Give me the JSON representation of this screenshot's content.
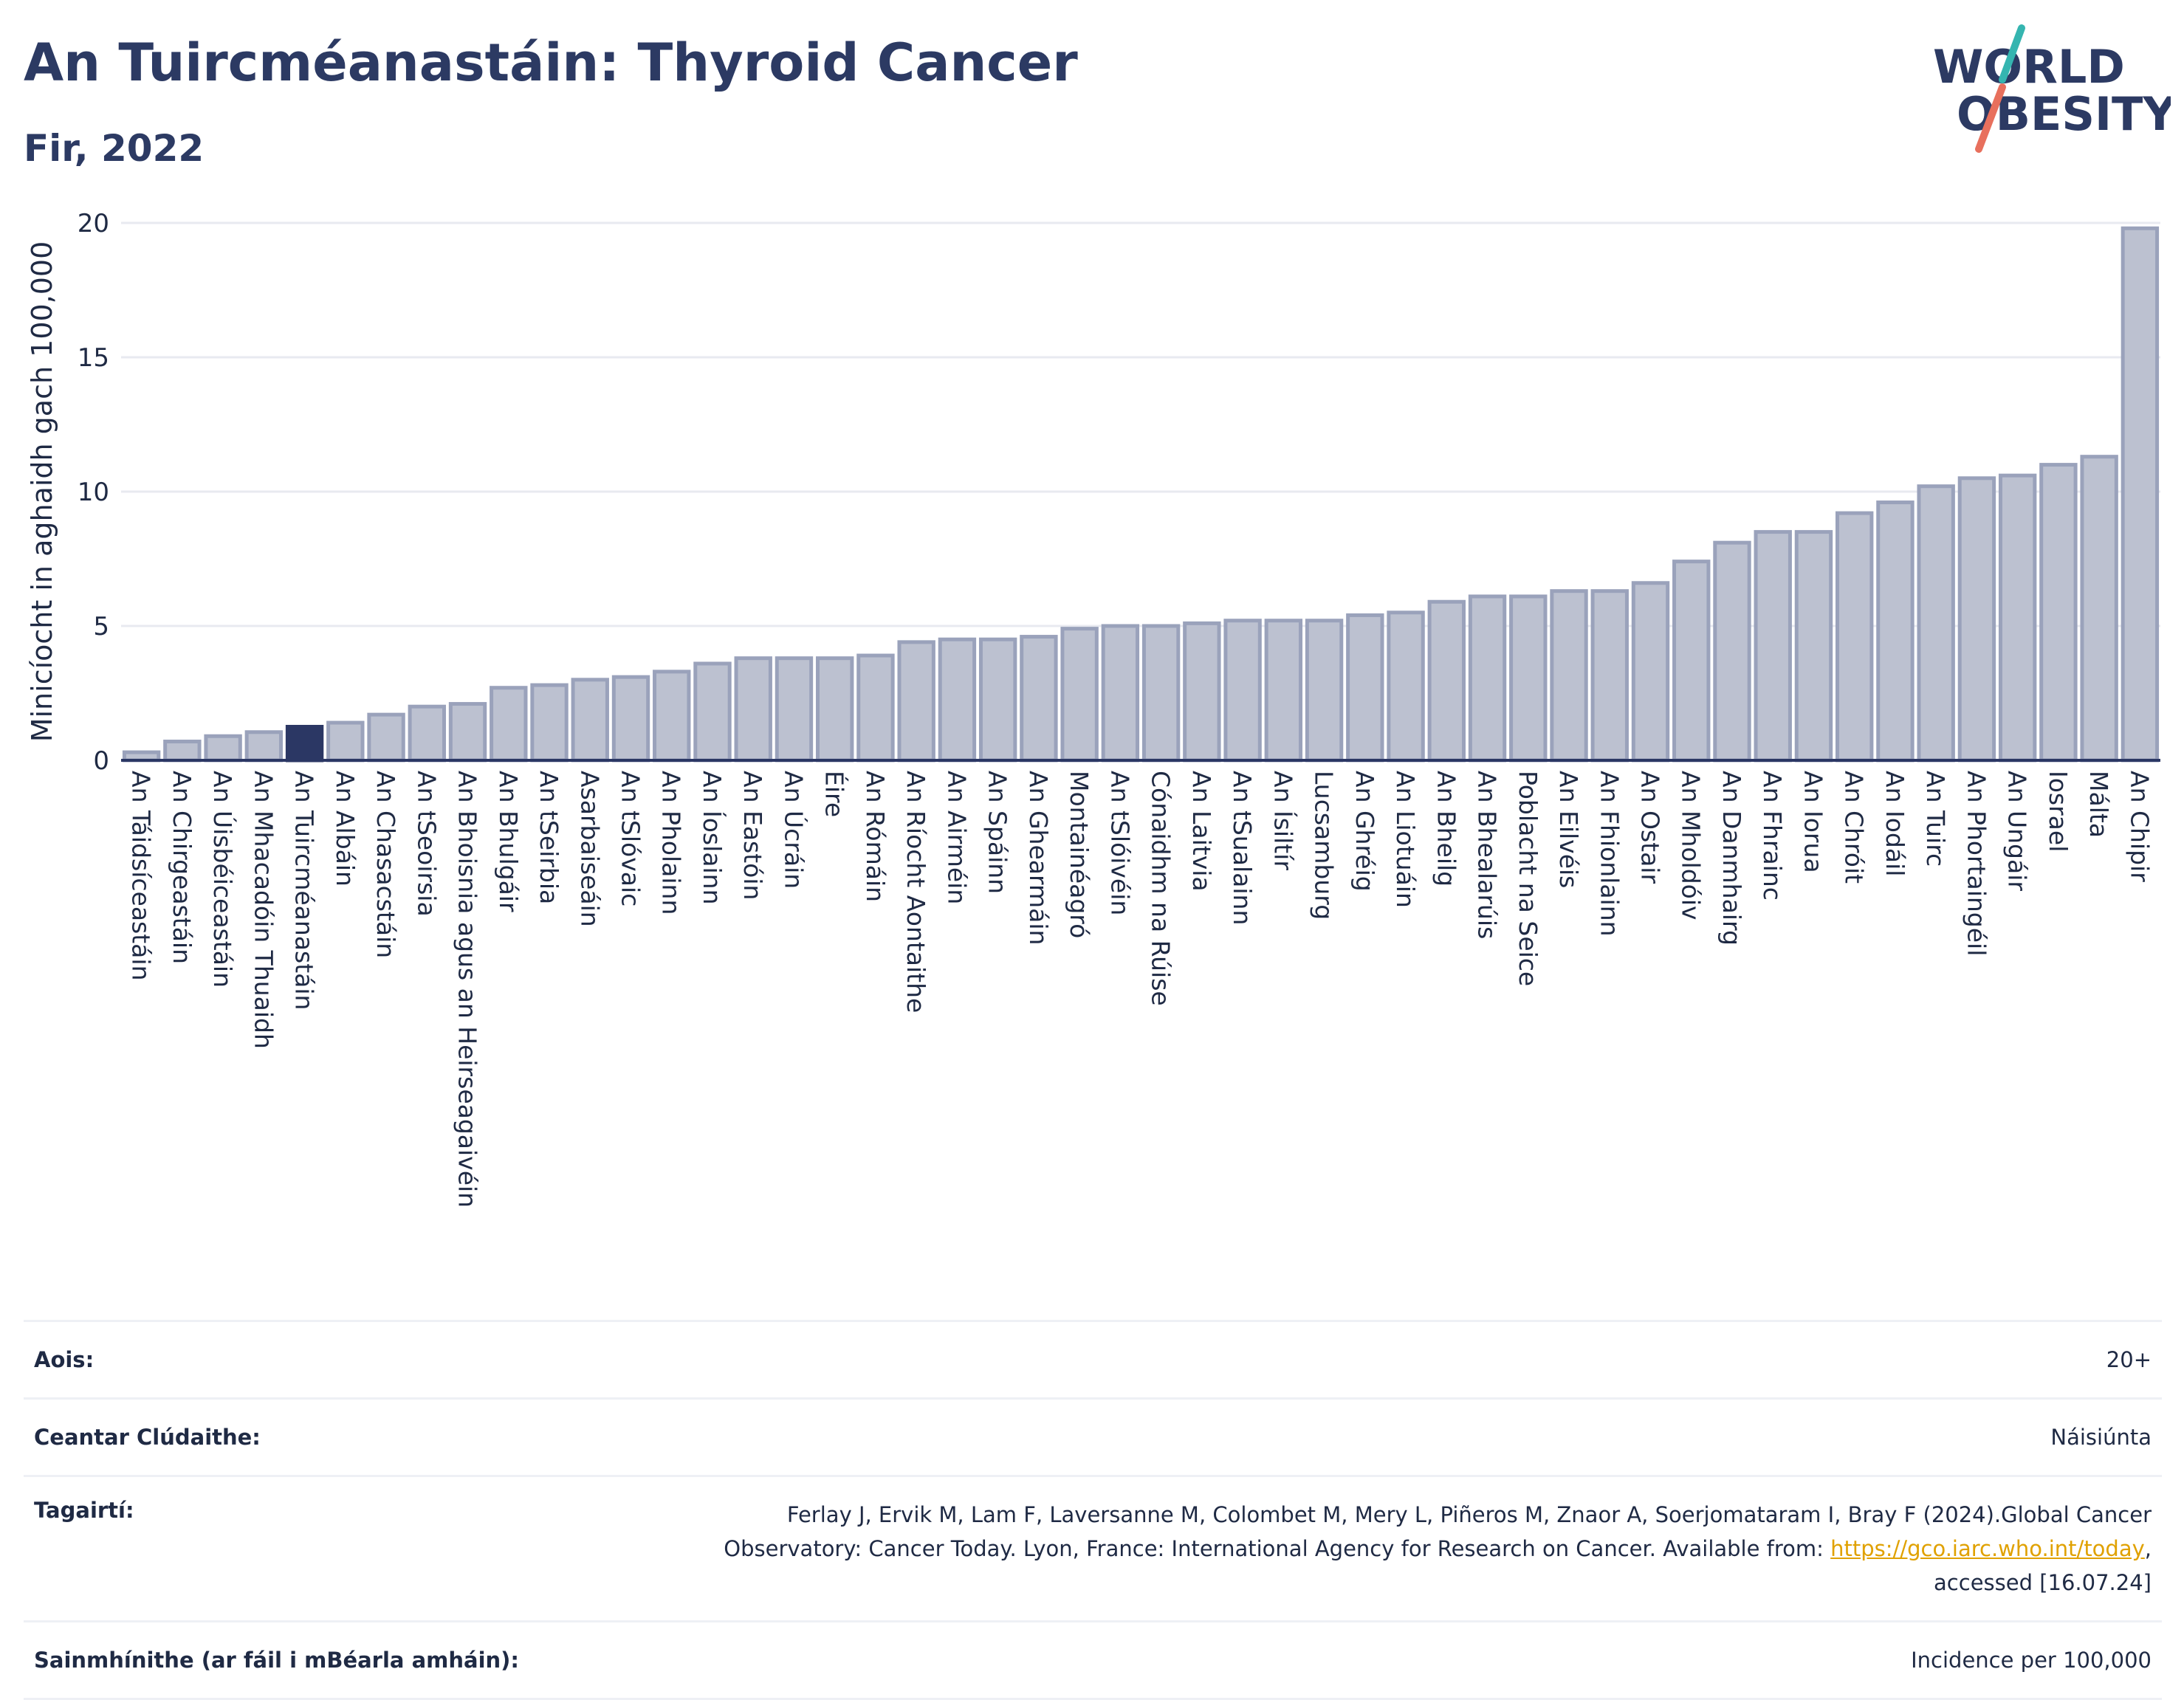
{
  "header": {
    "title": "An Tuircméanastáin: Thyroid Cancer",
    "subtitle": "Fir, 2022",
    "logo_line1": "WORLD",
    "logo_line2": "OBESITY"
  },
  "colors": {
    "bar": "#bcc1d0",
    "bar_border": "#9aa2bb",
    "highlight": "#2b3764",
    "axis": "#2b3764",
    "grid": "#e8eaf0",
    "logo_text": "#2c3a63",
    "logo_teal": "#35b5b0",
    "logo_coral": "#e8705d"
  },
  "chart_data": {
    "type": "bar",
    "title": "An Tuircméanastáin: Thyroid Cancer",
    "subtitle": "Fir, 2022",
    "ylabel": "Minicíocht in aghaidh gach 100,000",
    "xlabel": "",
    "ylim": [
      0,
      20
    ],
    "yticks": [
      0,
      5,
      10,
      15,
      20
    ],
    "grid": true,
    "highlight": "An Tuircméanastáin",
    "categories": [
      "An Táidsíceastáin",
      "An Chirgeastáin",
      "An Úisbéiceastáin",
      "An Mhacadóin Thuaidh",
      "An Tuircméanastáin",
      "An Albáin",
      "An Chasacstáin",
      "An tSeoirsia",
      "An Bhoisnia agus an Heirseagaivéin",
      "An Bhulgáir",
      "An tSeirbia",
      "Asarbaiseáin",
      "An tSlóvaic",
      "An Pholainn",
      "An Íoslainn",
      "An Eastóin",
      "An Úcráin",
      "Éire",
      "An Rómáin",
      "An Ríocht Aontaithe",
      "An Airméin",
      "An Spáinn",
      "An Ghearmáin",
      "Montainéagró",
      "An tSlóivéin",
      "Cónaidhm na Rúise",
      "An Laitvia",
      "An tSualainn",
      "An Ísiltír",
      "Lucsamburg",
      "An Ghréig",
      "An Liotuáin",
      "An Bheilg",
      "An Bhealarúis",
      "Poblacht na Seice",
      "An Eilvéis",
      "An Fhionlainn",
      "An Ostair",
      "An Mholdóiv",
      "An Danmhairg",
      "An Fhrainc",
      "An Iorua",
      "An Chróit",
      "An Iodáil",
      "An Tuirc",
      "An Phortaingéil",
      "An Ungáir",
      "Iosrael",
      "Málta",
      "An Chipir"
    ],
    "values": [
      0.3,
      0.7,
      0.9,
      1.05,
      1.25,
      1.4,
      1.7,
      2.0,
      2.1,
      2.7,
      2.8,
      3.0,
      3.1,
      3.3,
      3.6,
      3.8,
      3.8,
      3.8,
      3.9,
      4.4,
      4.5,
      4.5,
      4.6,
      4.9,
      5.0,
      5.0,
      5.1,
      5.2,
      5.2,
      5.2,
      5.4,
      5.5,
      5.9,
      6.1,
      6.1,
      6.3,
      6.3,
      6.6,
      7.4,
      8.1,
      8.5,
      8.5,
      9.2,
      9.6,
      10.2,
      10.5,
      10.6,
      11.0,
      11.3,
      19.8
    ]
  },
  "meta": {
    "age_label": "Aois:",
    "age_value": "20+",
    "area_label": "Ceantar Clúdaithe:",
    "area_value": "Náisiúnta",
    "ref_label": "Tagairtí:",
    "ref_line1": "Ferlay J, Ervik M, Lam F, Laversanne M, Colombet M, Mery L, Piñeros M, Znaor A, Soerjomataram I, Bray F (2024).Global Cancer",
    "ref_line2_pre": "Observatory: Cancer Today. Lyon, France: International Agency for Research on Cancer. Available from: ",
    "ref_link": "https://gco.iarc.who.int/today",
    "ref_line2_post": ",",
    "ref_line3": "accessed [16.07.24]",
    "def_label": "Sainmhínithe (ar fáil i mBéarla amháin):",
    "def_value": "Incidence per 100,000"
  }
}
